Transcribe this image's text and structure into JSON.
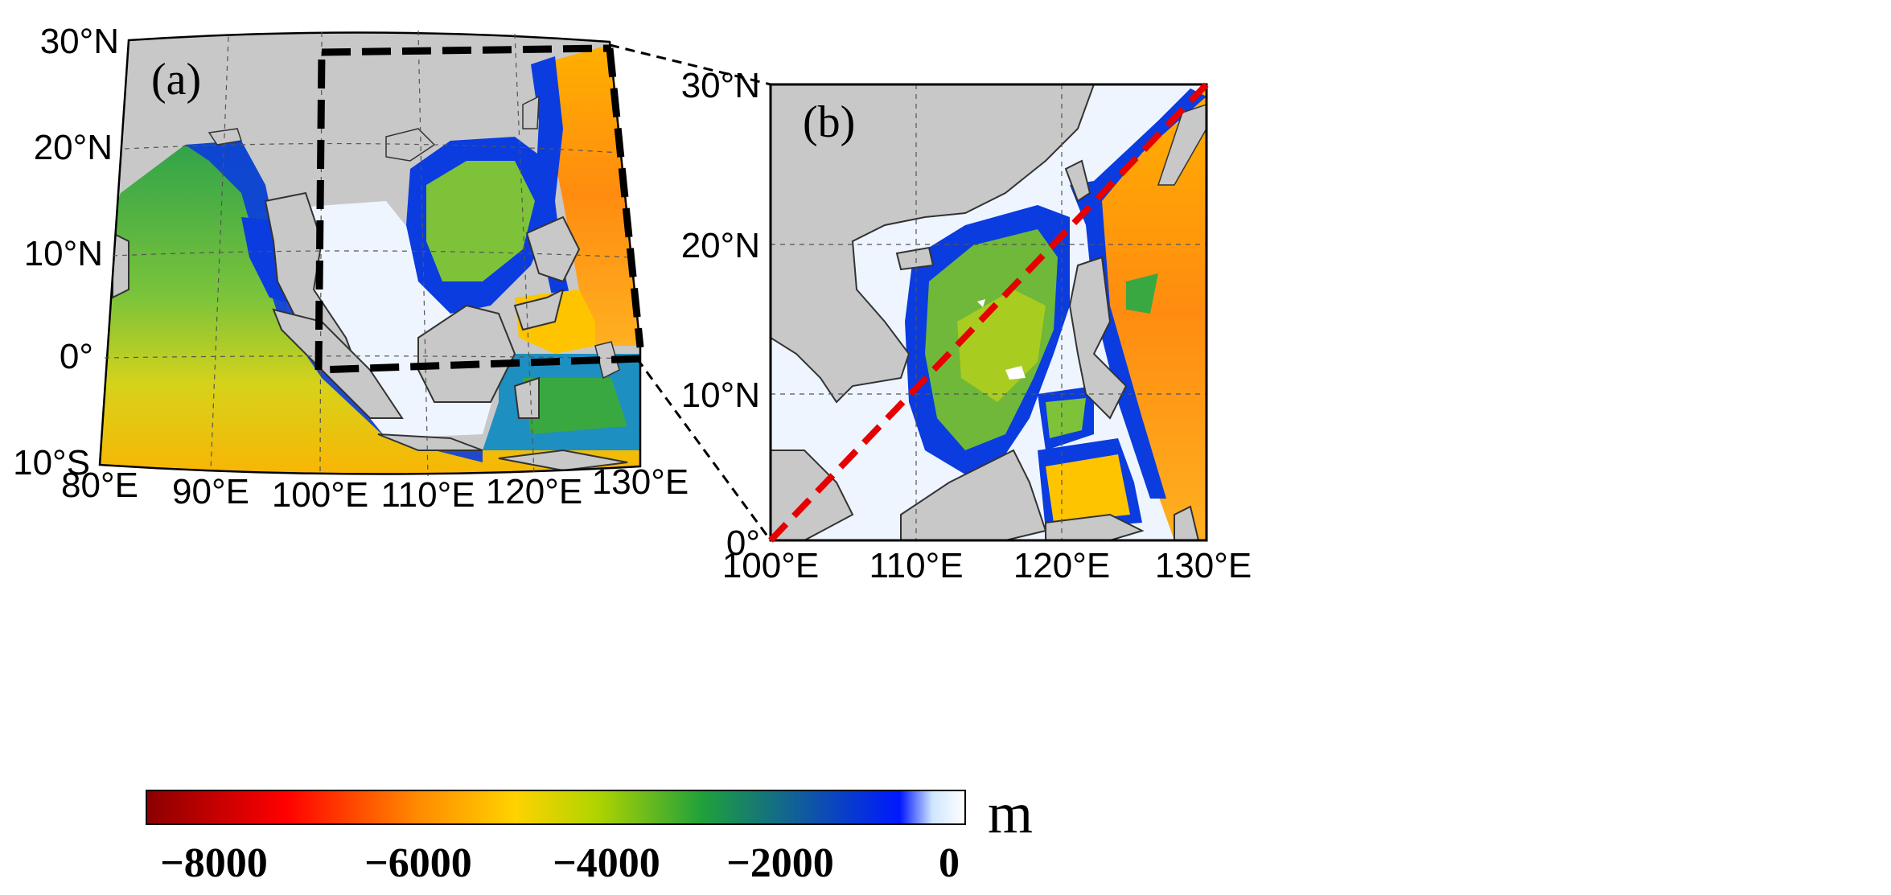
{
  "panel_a": {
    "label": "(a)",
    "lat_labels": [
      "30°N",
      "20°N",
      "10°N",
      "0°",
      "10°S"
    ],
    "lon_labels": [
      "80°E",
      "90°E",
      "100°E",
      "110°E",
      "120°E",
      "130°E"
    ]
  },
  "panel_b": {
    "label": "(b)",
    "lat_labels": [
      "30°N",
      "20°N",
      "10°N",
      "0°"
    ],
    "lon_labels": [
      "100°E",
      "110°E",
      "120°E",
      "130°E"
    ]
  },
  "colorbar": {
    "unit": "m",
    "ticks": [
      "−8000",
      "−6000",
      "−4000",
      "−2000",
      "0"
    ],
    "colors": [
      "#8b0000",
      "#ff0000",
      "#ff8a00",
      "#ffd200",
      "#b0d400",
      "#1fa03c",
      "#0018ff",
      "#cfe6ff",
      "#ffffff"
    ]
  },
  "colors": {
    "land": "#c8c8c8",
    "shelf": "#eef5ff",
    "deep_orange": "#ff9a10",
    "mid_green": "#3aa840",
    "blue_edge": "#0830e0",
    "section_line": "#e60000"
  }
}
